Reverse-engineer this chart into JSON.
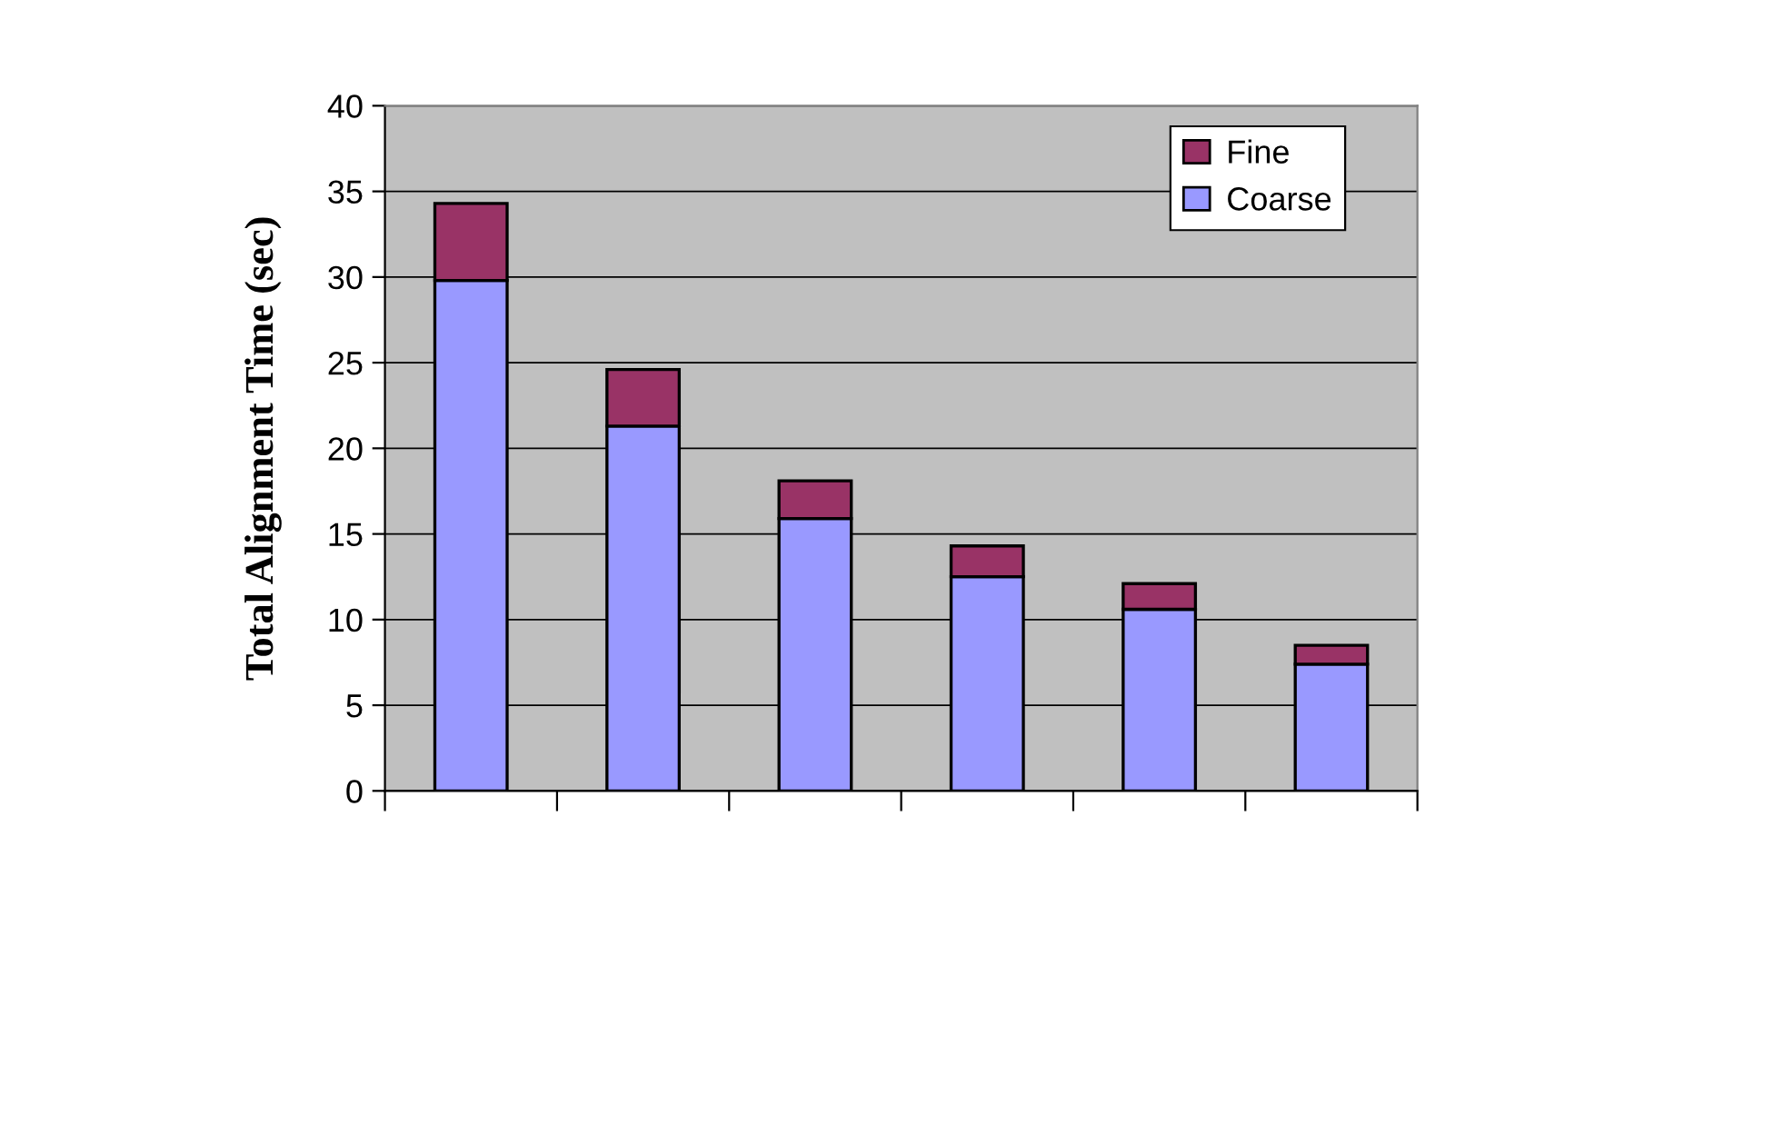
{
  "chart_data": {
    "type": "bar",
    "stacked": true,
    "ylabel": "Total Alignment Time (sec)",
    "categories": [
      null,
      null,
      null,
      null,
      null,
      null
    ],
    "series": [
      {
        "name": "Coarse",
        "color": "#9999ff",
        "values": [
          29.8,
          21.3,
          15.9,
          12.5,
          10.6,
          7.4
        ]
      },
      {
        "name": "Fine",
        "color": "#993366",
        "values": [
          4.5,
          3.3,
          2.2,
          1.8,
          1.5,
          1.1
        ]
      }
    ],
    "ylim": [
      0,
      40
    ],
    "yticks": [
      0,
      5,
      10,
      15,
      20,
      25,
      30,
      35,
      40
    ],
    "grid": "y",
    "legend": "top right"
  }
}
